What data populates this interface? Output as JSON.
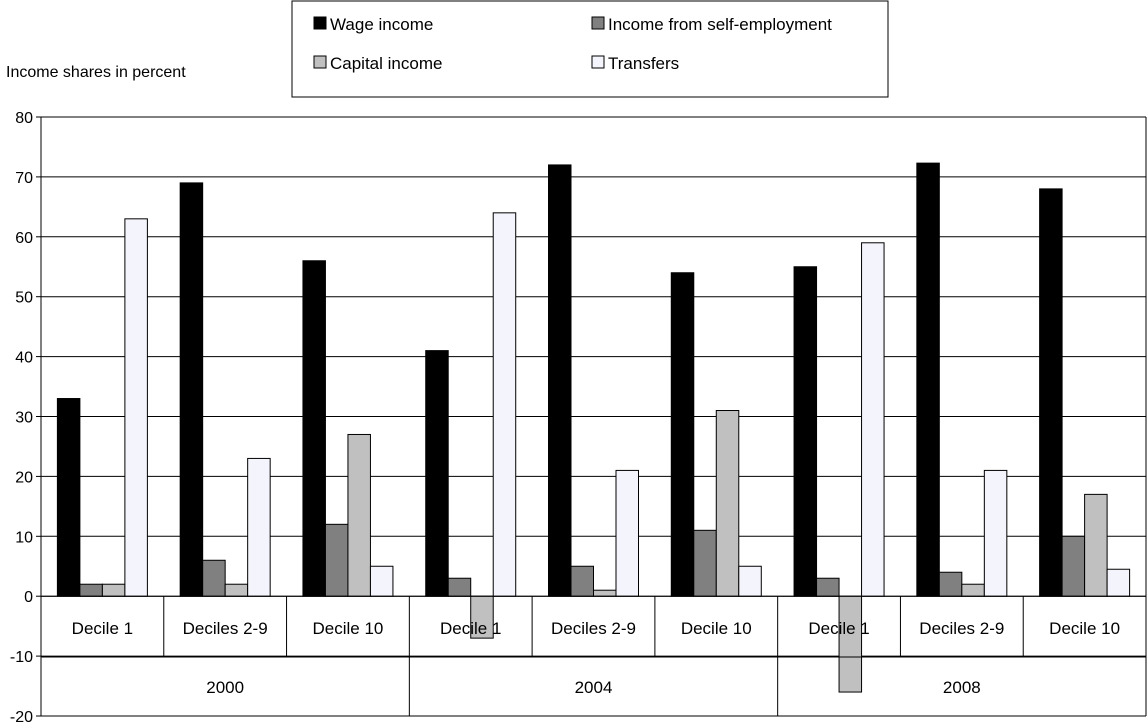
{
  "chart_data": {
    "type": "bar",
    "ylabel": "Income shares in percent",
    "ylim": [
      -20,
      80
    ],
    "yticks": [
      -20,
      -10,
      0,
      10,
      20,
      30,
      40,
      50,
      60,
      70,
      80
    ],
    "grid": true,
    "legend_position": "top",
    "groups": [
      {
        "label": "2000",
        "categories": [
          "Decile 1",
          "Deciles 2-9",
          "Decile 10"
        ]
      },
      {
        "label": "2004",
        "categories": [
          "Decile 1",
          "Deciles 2-9",
          "Decile 10"
        ]
      },
      {
        "label": "2008",
        "categories": [
          "Decile 1",
          "Deciles 2-9",
          "Decile 10"
        ]
      }
    ],
    "series": [
      {
        "name": "Wage income",
        "color": "#000000",
        "values": [
          33,
          69,
          56,
          41,
          72,
          54,
          55,
          72.3,
          68
        ]
      },
      {
        "name": "Income from self-employment",
        "color": "#808080",
        "values": [
          2,
          6,
          12,
          3,
          5,
          11,
          3,
          4,
          10
        ]
      },
      {
        "name": "Capital income",
        "color": "#c0c0c0",
        "values": [
          2,
          2,
          27,
          -7,
          1,
          31,
          -16,
          2,
          17
        ]
      },
      {
        "name": "Transfers",
        "color": "#f4f4fc",
        "values": [
          63,
          23,
          5,
          64,
          21,
          5,
          59,
          21,
          4.5
        ]
      }
    ]
  }
}
